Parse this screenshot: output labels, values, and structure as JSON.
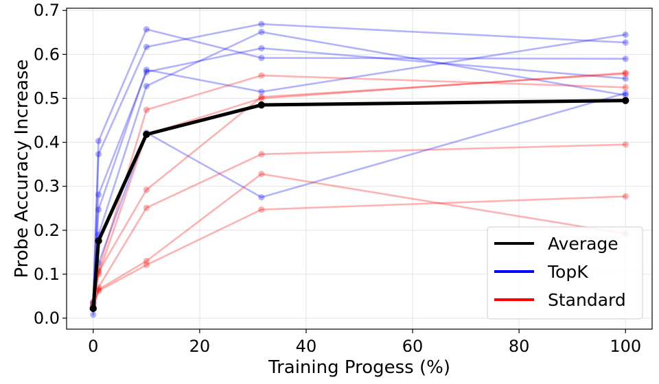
{
  "chart_data": {
    "type": "line",
    "title": "",
    "xlabel": "Training Progess (%)",
    "ylabel": "Probe Accuracy Increase",
    "xlim": [
      -5,
      105
    ],
    "ylim": [
      -0.025,
      0.705
    ],
    "xticks": [
      0,
      20,
      40,
      60,
      80,
      100
    ],
    "xtick_labels": [
      "0",
      "20",
      "40",
      "60",
      "80",
      "100"
    ],
    "yticks": [
      0.0,
      0.1,
      0.2,
      0.3,
      0.4,
      0.5,
      0.6,
      0.7
    ],
    "ytick_labels": [
      "0.0",
      "0.1",
      "0.2",
      "0.3",
      "0.4",
      "0.5",
      "0.6",
      "0.7"
    ],
    "grid": true,
    "legend_position": "bottom-right",
    "legend": [
      {
        "name": "Average",
        "color": "#000000"
      },
      {
        "name": "TopK",
        "color": "#0000ff"
      },
      {
        "name": "Standard",
        "color": "#ff0000"
      }
    ],
    "x": [
      0,
      1,
      10,
      31.6,
      100
    ],
    "series": [
      {
        "name": "TopK",
        "group": "TopK",
        "color": "#0000ff",
        "values": [
          0.035,
          0.403,
          0.657,
          0.592,
          0.59
        ]
      },
      {
        "name": "TopK",
        "group": "TopK",
        "color": "#0000ff",
        "values": [
          0.035,
          0.373,
          0.617,
          0.669,
          0.627
        ]
      },
      {
        "name": "TopK",
        "group": "TopK",
        "color": "#0000ff",
        "values": [
          0.025,
          0.281,
          0.56,
          0.614,
          0.545
        ]
      },
      {
        "name": "TopK",
        "group": "TopK",
        "color": "#0000ff",
        "values": [
          0.025,
          0.247,
          0.565,
          0.515,
          0.645
        ]
      },
      {
        "name": "TopK",
        "group": "TopK",
        "color": "#0000ff",
        "values": [
          0.008,
          0.19,
          0.528,
          0.651,
          0.507
        ]
      },
      {
        "name": "TopK",
        "group": "TopK",
        "color": "#0000ff",
        "values": [
          0.025,
          0.125,
          0.422,
          0.275,
          0.512
        ]
      },
      {
        "name": "Standard",
        "group": "Standard",
        "color": "#ff0000",
        "values": [
          0.037,
          0.11,
          0.474,
          0.552,
          0.525
        ]
      },
      {
        "name": "Standard",
        "group": "Standard",
        "color": "#ff0000",
        "values": [
          0.03,
          0.1,
          0.418,
          0.5,
          0.558
        ]
      },
      {
        "name": "Standard",
        "group": "Standard",
        "color": "#ff0000",
        "values": [
          0.03,
          0.105,
          0.292,
          0.503,
          0.556
        ]
      },
      {
        "name": "Standard",
        "group": "Standard",
        "color": "#ff0000",
        "values": [
          0.025,
          0.07,
          0.251,
          0.373,
          0.395
        ]
      },
      {
        "name": "Standard",
        "group": "Standard",
        "color": "#ff0000",
        "values": [
          0.025,
          0.065,
          0.13,
          0.328,
          0.192
        ]
      },
      {
        "name": "Standard",
        "group": "Standard",
        "color": "#ff0000",
        "values": [
          0.025,
          0.062,
          0.121,
          0.247,
          0.277
        ]
      },
      {
        "name": "Average",
        "group": "Average",
        "color": "#000000",
        "values": [
          0.022,
          0.176,
          0.418,
          0.485,
          0.495
        ]
      }
    ]
  }
}
